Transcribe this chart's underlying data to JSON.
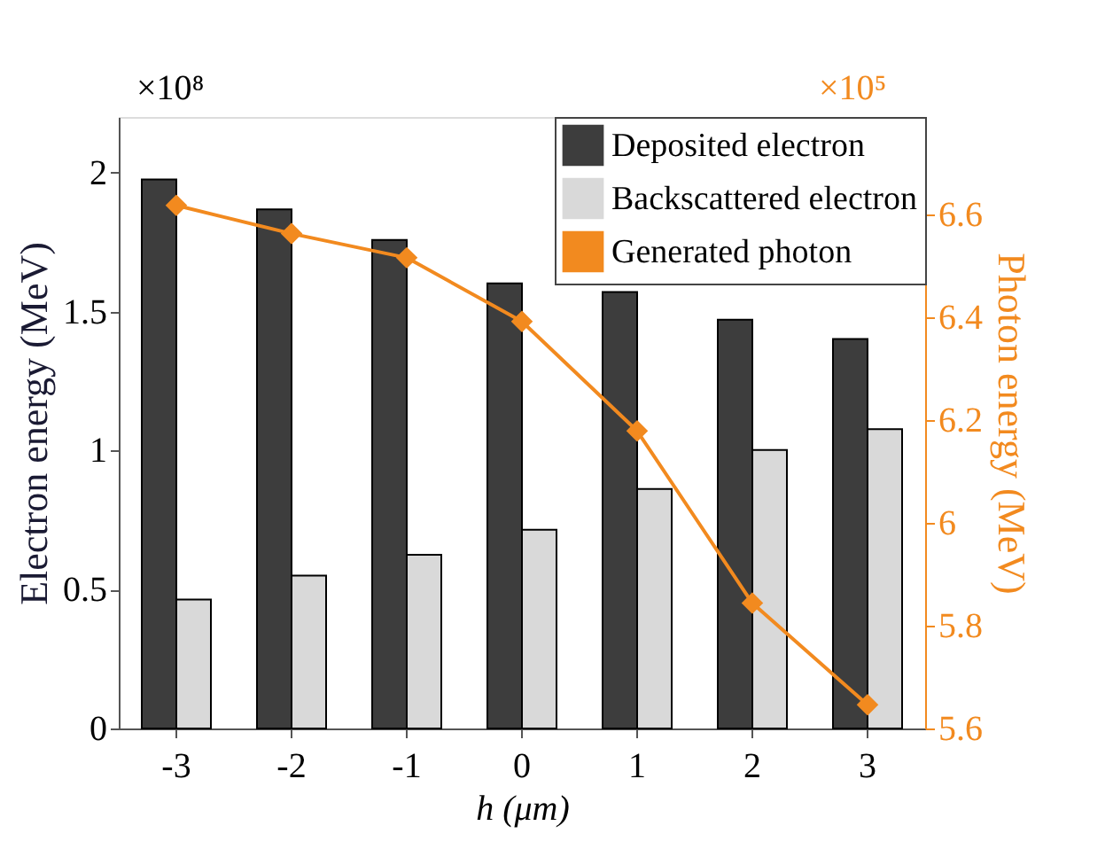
{
  "chart_data": {
    "type": "bar",
    "xlabel": "h (μm)",
    "ylabel": "Electron energy (MeV)",
    "y2label": "Photon energy (MeV)",
    "categories": [
      "-3",
      "-2",
      "-1",
      "0",
      "1",
      "2",
      "3"
    ],
    "series": [
      {
        "name": "Deposited electron",
        "color": "#3d3d3d",
        "values": [
          1.975,
          1.868,
          1.758,
          1.601,
          1.57,
          1.471,
          1.401
        ]
      },
      {
        "name": "Backscattered electron",
        "color": "#d9d9d9",
        "values": [
          0.464,
          0.55,
          0.625,
          0.715,
          0.862,
          1.002,
          1.077
        ]
      },
      {
        "name": "Generated photon",
        "color": "#f28a1f",
        "type": "line",
        "axis": "y2",
        "marker": "diamond",
        "values": [
          6.618,
          6.563,
          6.516,
          6.392,
          6.179,
          5.844,
          5.646
        ]
      }
    ],
    "ylim": [
      0,
      2.2
    ],
    "yticks": [
      0,
      0.5,
      1,
      1.5,
      2
    ],
    "y2lim": [
      5.6,
      6.79
    ],
    "y2ticks": [
      5.6,
      5.8,
      6,
      6.2,
      6.4,
      6.6
    ],
    "annotations": [
      "×10⁸",
      "×10⁵"
    ],
    "legend": "top right",
    "grid": false
  }
}
